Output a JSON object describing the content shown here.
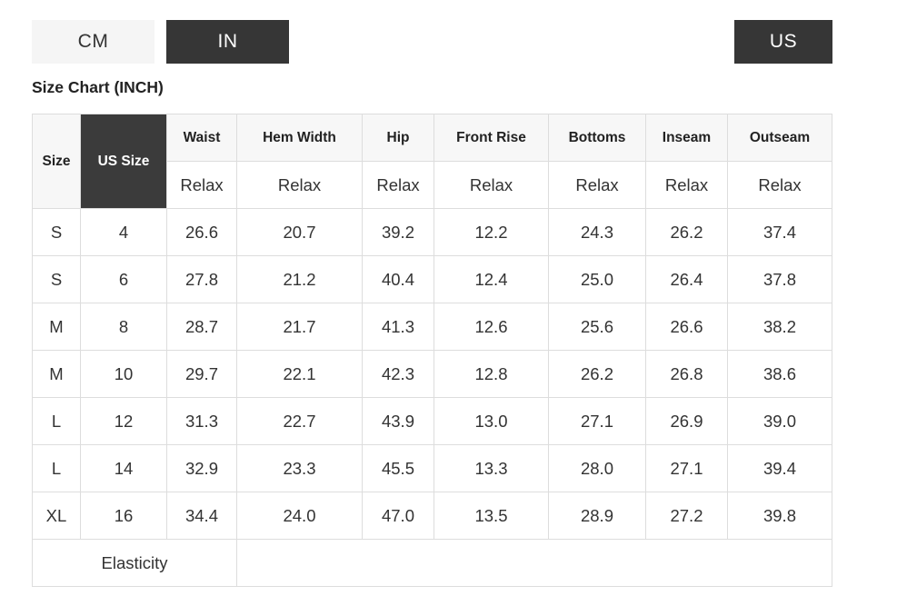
{
  "unit_toggle": {
    "cm_label": "CM",
    "in_label": "IN",
    "active_unit": "IN"
  },
  "region_toggle": {
    "us_label": "US",
    "active": true
  },
  "title": "Size Chart (INCH)",
  "table": {
    "size_header": "Size",
    "us_size_header": "US Size",
    "measure_headers": [
      "Waist",
      "Hem Width",
      "Hip",
      "Front Rise",
      "Bottoms",
      "Inseam",
      "Outseam"
    ],
    "fit_labels": [
      "Relax",
      "Relax",
      "Relax",
      "Relax",
      "Relax",
      "Relax",
      "Relax"
    ],
    "rows": [
      {
        "size": "S",
        "us": "4",
        "values": [
          "26.6",
          "20.7",
          "39.2",
          "12.2",
          "24.3",
          "26.2",
          "37.4"
        ]
      },
      {
        "size": "S",
        "us": "6",
        "values": [
          "27.8",
          "21.2",
          "40.4",
          "12.4",
          "25.0",
          "26.4",
          "37.8"
        ]
      },
      {
        "size": "M",
        "us": "8",
        "values": [
          "28.7",
          "21.7",
          "41.3",
          "12.6",
          "25.6",
          "26.6",
          "38.2"
        ]
      },
      {
        "size": "M",
        "us": "10",
        "values": [
          "29.7",
          "22.1",
          "42.3",
          "12.8",
          "26.2",
          "26.8",
          "38.6"
        ]
      },
      {
        "size": "L",
        "us": "12",
        "values": [
          "31.3",
          "22.7",
          "43.9",
          "13.0",
          "27.1",
          "26.9",
          "39.0"
        ]
      },
      {
        "size": "L",
        "us": "14",
        "values": [
          "32.9",
          "23.3",
          "45.5",
          "13.3",
          "28.0",
          "27.1",
          "39.4"
        ]
      },
      {
        "size": "XL",
        "us": "16",
        "values": [
          "34.4",
          "24.0",
          "47.0",
          "13.5",
          "28.9",
          "27.2",
          "39.8"
        ]
      }
    ],
    "footer_label": "Elasticity"
  },
  "colors": {
    "active_button_bg": "#363636",
    "inactive_button_bg": "#f5f5f5",
    "header_cell_bg": "#f7f7f7",
    "us_size_cell_bg": "#3b3b3b",
    "border": "#dddddd"
  }
}
